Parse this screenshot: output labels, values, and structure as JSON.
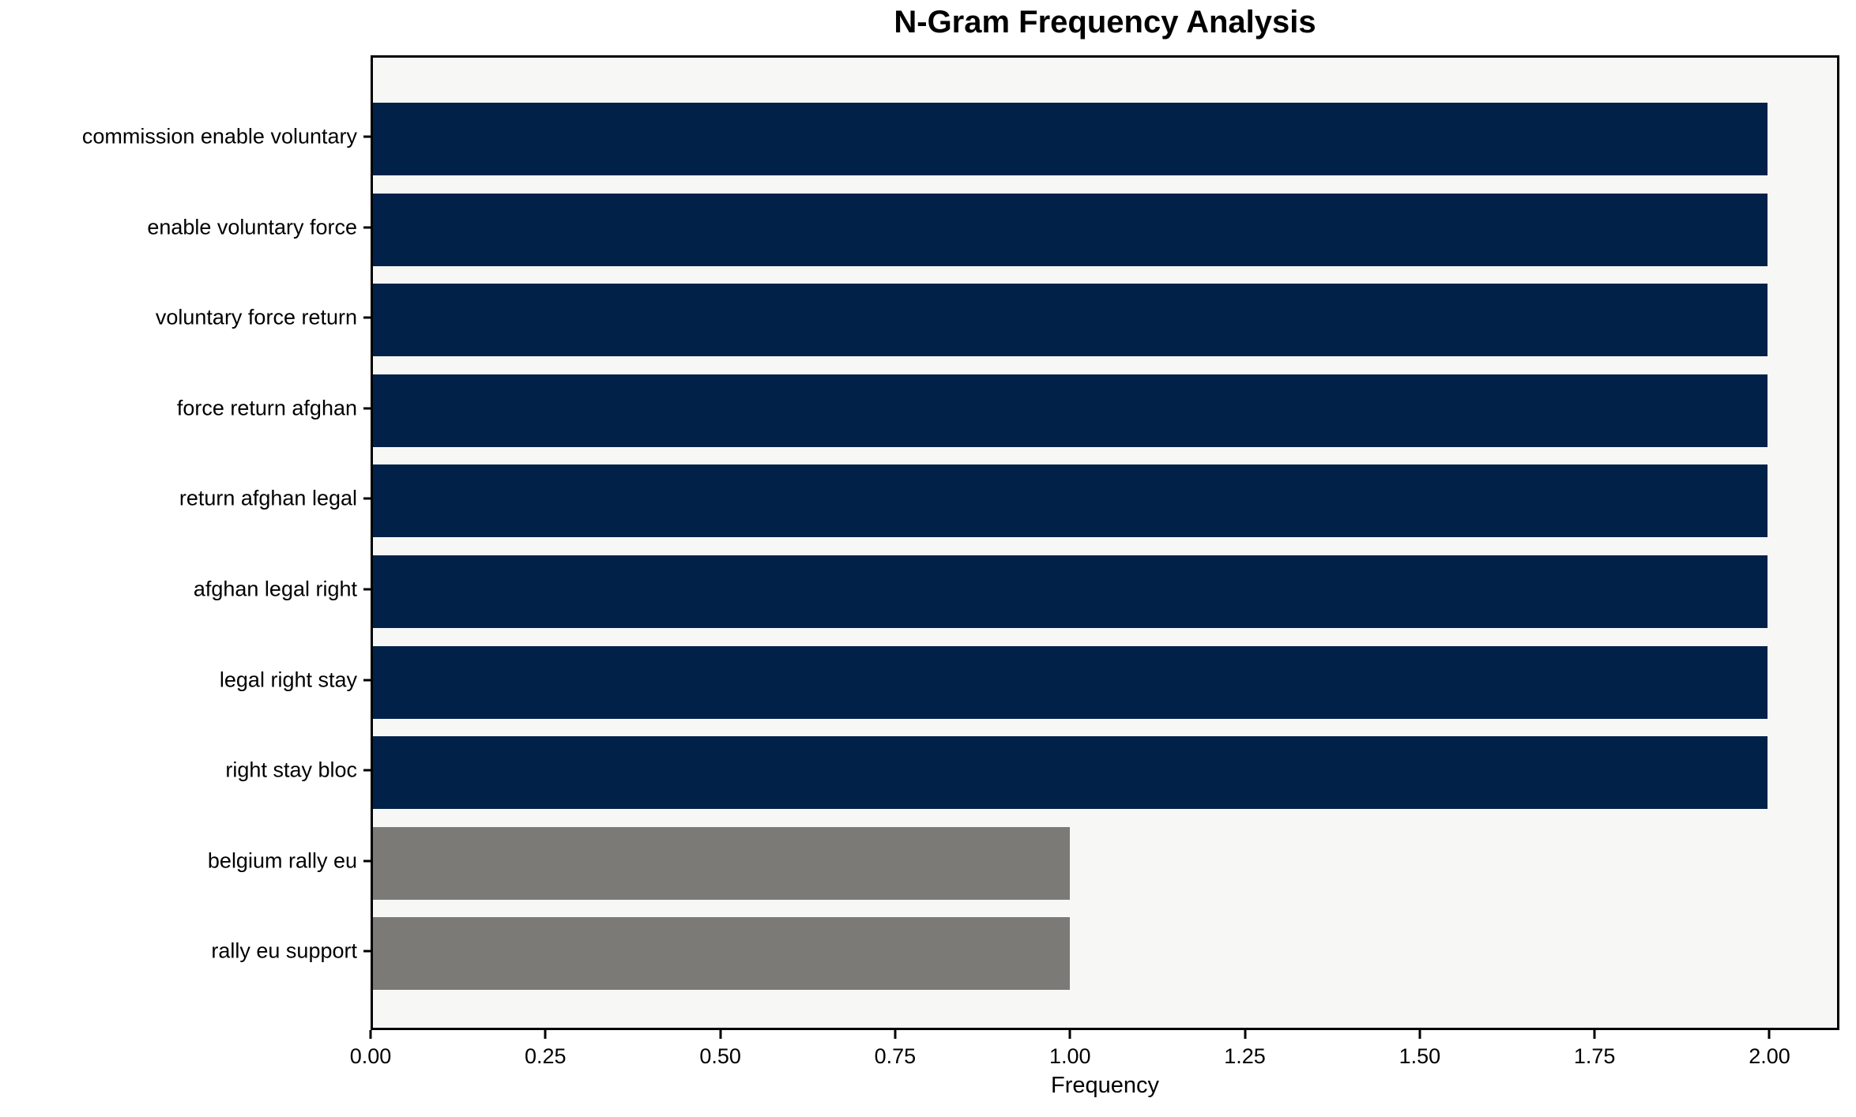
{
  "chart_data": {
    "type": "bar",
    "orientation": "horizontal",
    "title": "N-Gram Frequency Analysis",
    "xlabel": "Frequency",
    "ylabel": "",
    "categories": [
      "commission enable voluntary",
      "enable voluntary force",
      "voluntary force return",
      "force return afghan",
      "return afghan legal",
      "afghan legal right",
      "legal right stay",
      "right stay bloc",
      "belgium rally eu",
      "rally eu support"
    ],
    "values": [
      2,
      2,
      2,
      2,
      2,
      2,
      2,
      2,
      1,
      1
    ],
    "bar_colors": [
      "#022149",
      "#022149",
      "#022149",
      "#022149",
      "#022149",
      "#022149",
      "#022149",
      "#022149",
      "#7b7a77",
      "#7b7a77"
    ],
    "xlim": [
      0,
      2.1
    ],
    "xticks": [
      0,
      0.25,
      0.5,
      0.75,
      1.0,
      1.25,
      1.5,
      1.75,
      2.0
    ],
    "xtick_labels": [
      "0.00",
      "0.25",
      "0.50",
      "0.75",
      "1.00",
      "1.25",
      "1.50",
      "1.75",
      "2.00"
    ],
    "grid": false,
    "legend": false,
    "colors": {
      "bar_primary": "#022149",
      "bar_secondary": "#7b7a77",
      "plot_background": "#f7f7f6",
      "figure_background": "#ffffff",
      "spine": "#000000",
      "text": "#000000"
    }
  }
}
